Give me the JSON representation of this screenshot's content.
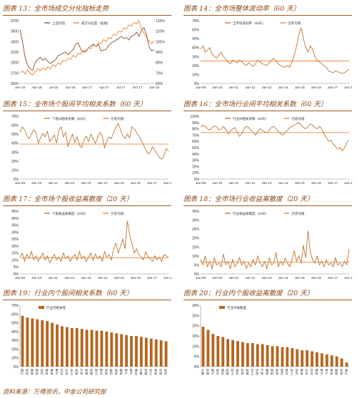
{
  "footer": "资料来源：万得资讯，中金公司研究部",
  "colors": {
    "line": "#b5651d",
    "ref": "#e8761d",
    "dark": "#7a3b10",
    "bar": "#b5651d"
  },
  "charts": [
    {
      "id": "c13",
      "title": "图表 13：全市场成交分化指标走势",
      "chart_data": {
        "type": "line",
        "dual_axis": true,
        "ylim": [
          2500,
          3700
        ],
        "yticks": [
          2500,
          2700,
          2900,
          3100,
          3300,
          3500,
          3700
        ],
        "ylim_right": [
          60,
          120
        ],
        "yticks_right": [
          "60%",
          "70%",
          "80%",
          "90%",
          "100%",
          "110%",
          "120%"
        ],
        "x_ticks": [
          "Jan-16",
          "Apr-16",
          "Jul-16",
          "Oct-16",
          "Jan-17",
          "Apr-17",
          "Jul-17",
          "Oct-17",
          "Jan-18"
        ],
        "series": [
          {
            "name": "上证综指",
            "axis": "left",
            "color": "dark",
            "values": [
              3530,
              3300,
              3000,
              2850,
              2780,
              2750,
              2900,
              2960,
              3000,
              2940,
              2980,
              2920,
              2880,
              2920,
              2950,
              3030,
              3050,
              3080,
              3100,
              3050,
              3100,
              3150,
              3250,
              3280,
              3150,
              3100,
              3120,
              3180,
              3220,
              3250,
              3200,
              3250,
              3120,
              3140,
              3150,
              3230,
              3270,
              3300,
              3330,
              3360,
              3400,
              3360,
              3380,
              3330,
              3410,
              3420,
              3480,
              3400,
              3520,
              3570,
              3420,
              3200,
              3120,
              3150
            ]
          },
          {
            "name": "成交分化度（右轴）",
            "axis": "right",
            "color": "ref",
            "values": [
              70,
              72,
              69,
              73,
              70,
              68,
              71,
              74,
              72,
              75,
              73,
              76,
              74,
              78,
              76,
              80,
              78,
              82,
              81,
              84,
              83,
              87,
              85,
              89,
              88,
              92,
              90,
              94,
              93,
              97,
              95,
              99,
              98,
              102,
              100,
              104,
              103,
              107,
              106,
              110,
              109,
              113,
              112,
              116,
              115,
              118,
              117,
              120,
              112,
              108,
              104,
              100,
              98,
              101
            ]
          }
        ]
      }
    },
    {
      "id": "c14",
      "title": "图表 14：全市场整体波动率（60 天）",
      "chart_data": {
        "type": "line",
        "ylim": [
          0,
          70
        ],
        "yticks": [
          "0%",
          "10%",
          "20%",
          "30%",
          "40%",
          "50%",
          "60%",
          "70%"
        ],
        "x_ticks": [
          "Jan-09",
          "Jan-10",
          "Jan-11",
          "Jan-12",
          "Jan-13",
          "Jan-14",
          "Jan-15",
          "Jan-16",
          "Jan-17",
          "Jan-18"
        ],
        "series": [
          {
            "name": "全市场波动率（60天）",
            "color": "line",
            "values": [
              38,
              42,
              35,
              37,
              40,
              33,
              30,
              28,
              32,
              35,
              30,
              27,
              24,
              22,
              26,
              25,
              23,
              26,
              24,
              22,
              20,
              23,
              21,
              19,
              22,
              26,
              24,
              22,
              21,
              20,
              23,
              26,
              28,
              25,
              22,
              20,
              19,
              18,
              20,
              18,
              24,
              32,
              42,
              55,
              62,
              50,
              40,
              35,
              42,
              38,
              30,
              26,
              24,
              22,
              20,
              18,
              14,
              13,
              12,
              14,
              13,
              12,
              11,
              12,
              14,
              16
            ]
          },
          {
            "name": "历史均值",
            "color": "ref",
            "constant": 25
          }
        ]
      }
    },
    {
      "id": "c15",
      "title": "图表 15：全市场个股间平均相关系数（60 天）",
      "chart_data": {
        "type": "line",
        "ylim": [
          0,
          70
        ],
        "yticks": [
          "0%",
          "10%",
          "20%",
          "30%",
          "40%",
          "50%",
          "60%",
          "70%"
        ],
        "x_ticks": [
          "Jan-09",
          "Jan-10",
          "Jan-11",
          "Jan-12",
          "Jan-13",
          "Jan-14",
          "Jan-15",
          "Jan-16",
          "Jan-17",
          "Jan-18"
        ],
        "series": [
          {
            "name": "个股间相关系数（60天）",
            "color": "line",
            "values": [
              52,
              58,
              55,
              48,
              45,
              50,
              55,
              52,
              40,
              46,
              51,
              47,
              53,
              42,
              45,
              49,
              40,
              55,
              58,
              47,
              52,
              36,
              44,
              50,
              41,
              47,
              38,
              35,
              44,
              48,
              42,
              50,
              45,
              40,
              46,
              52,
              48,
              35,
              42,
              47,
              45,
              52,
              58,
              62,
              55,
              48,
              45,
              50,
              46,
              58,
              56,
              52,
              48,
              44,
              38,
              33,
              28,
              30,
              36,
              32,
              28,
              24,
              22,
              26,
              34,
              31
            ]
          },
          {
            "name": "历史均值",
            "color": "ref",
            "constant": 39
          }
        ]
      }
    },
    {
      "id": "c16",
      "title": "图表 16：全市场行业间平均相关系数（60 天）",
      "chart_data": {
        "type": "line",
        "ylim": [
          0,
          100
        ],
        "yticks": [
          "0%",
          "10%",
          "20%",
          "30%",
          "40%",
          "50%",
          "60%",
          "70%",
          "80%",
          "90%",
          "100%"
        ],
        "x_ticks": [
          "Jan-09",
          "Jan-10",
          "Jan-11",
          "Jan-12",
          "Jan-13",
          "Jan-14",
          "Jan-15",
          "Jan-16",
          "Jan-17",
          "Jan-18"
        ],
        "series": [
          {
            "name": "行业间相关系数（60天）",
            "color": "line",
            "values": [
              83,
              86,
              84,
              80,
              78,
              82,
              85,
              83,
              78,
              80,
              84,
              79,
              72,
              76,
              80,
              82,
              75,
              68,
              72,
              80,
              84,
              82,
              78,
              74,
              70,
              76,
              80,
              78,
              75,
              74,
              78,
              82,
              84,
              80,
              76,
              72,
              70,
              74,
              78,
              82,
              84,
              86,
              88,
              90,
              86,
              82,
              80,
              84,
              88,
              86,
              82,
              80,
              84,
              80,
              72,
              66,
              60,
              62,
              56,
              52,
              48,
              50,
              45,
              50,
              58,
              62
            ]
          },
          {
            "name": "历史均值",
            "color": "ref",
            "constant": 74
          }
        ]
      }
    },
    {
      "id": "c17",
      "title": "图表 17：全市场个股收益离散度（20 天）",
      "chart_data": {
        "type": "line",
        "ylim": [
          0,
          45
        ],
        "yticks": [
          "0%",
          "5%",
          "10%",
          "15%",
          "20%",
          "25%",
          "30%",
          "35%",
          "40%",
          "45%"
        ],
        "x_ticks": [
          "Jan-09",
          "Jan-10",
          "Jan-11",
          "Jan-12",
          "Jan-13",
          "Jan-14",
          "Jan-15",
          "Jan-16",
          "Jan-17",
          "Jan-18"
        ],
        "series": [
          {
            "name": "个股收益离散度（20天）",
            "color": "line",
            "values": [
              12,
              15,
              9,
              14,
              11,
              16,
              10,
              13,
              9,
              12,
              15,
              10,
              13,
              8,
              11,
              14,
              10,
              12,
              9,
              15,
              11,
              13,
              9,
              12,
              14,
              10,
              16,
              11,
              13,
              9,
              12,
              15,
              10,
              14,
              11,
              13,
              9,
              16,
              12,
              14,
              10,
              18,
              22,
              15,
              20,
              25,
              18,
              38,
              28,
              22,
              15,
              18,
              14,
              12,
              10,
              16,
              12,
              11,
              9,
              13,
              10,
              12,
              9,
              14,
              13,
              12
            ]
          },
          {
            "name": "历史均值",
            "color": "ref",
            "constant": 11.5
          }
        ]
      }
    },
    {
      "id": "c18",
      "title": "图表 18：全市场行业收益离散度（20 天）",
      "chart_data": {
        "type": "line",
        "ylim": [
          0,
          35
        ],
        "yticks": [
          "0%",
          "5%",
          "10%",
          "15%",
          "20%",
          "25%",
          "30%",
          "35%"
        ],
        "x_ticks": [
          "Jan-09",
          "Jan-10",
          "Jan-11",
          "Jan-12",
          "Jan-13",
          "Jan-14",
          "Jan-15",
          "Jan-16",
          "Jan-17",
          "Jan-18"
        ],
        "series": [
          {
            "name": "行业收益离散度（20天）",
            "color": "line",
            "values": [
              8,
              5,
              10,
              4,
              7,
              3,
              9,
              5,
              6,
              4,
              11,
              5,
              7,
              3,
              8,
              4,
              6,
              9,
              5,
              7,
              3,
              6,
              4,
              8,
              5,
              10,
              6,
              4,
              7,
              3,
              9,
              5,
              6,
              12,
              4,
              7,
              5,
              9,
              6,
              4,
              8,
              13,
              7,
              10,
              6,
              16,
              9,
              24,
              12,
              8,
              6,
              10,
              5,
              7,
              4,
              8,
              5,
              6,
              4,
              9,
              5,
              6,
              4,
              7,
              5,
              14
            ]
          },
          {
            "name": "历史均值",
            "color": "ref",
            "constant": 6.5
          }
        ]
      }
    },
    {
      "id": "c19",
      "title": "图表 19：行业内个股间相关系数（60 天）",
      "chart_data": {
        "type": "bar",
        "ylim": [
          0,
          70
        ],
        "yticks": [
          "0%",
          "10%",
          "20%",
          "30%",
          "40%",
          "50%",
          "60%",
          "70%"
        ],
        "series": [
          {
            "name": "行业内相关性",
            "color": "bar"
          }
        ],
        "categories": [
          "银行",
          "非银",
          "钢铁",
          "煤炭",
          "有色",
          "建材",
          "建筑",
          "电力",
          "交运",
          "石化",
          "化工",
          "机械",
          "汽车",
          "家电",
          "纺服",
          "轻工",
          "食饮",
          "农林",
          "医药",
          "商贸",
          "餐旅",
          "地产",
          "电子",
          "通信",
          "计算",
          "传媒",
          "军工",
          "电新",
          "环保",
          "综合"
        ],
        "values": [
          58,
          56,
          55,
          54,
          53,
          52,
          50,
          48,
          46,
          45,
          44,
          44,
          43,
          42,
          42,
          41,
          41,
          40,
          39,
          38,
          37,
          36,
          35,
          35,
          34,
          33,
          32,
          31,
          30,
          29
        ]
      }
    },
    {
      "id": "c20",
      "title": "图表 20：行业内个股收益离散度（20 天）",
      "chart_data": {
        "type": "bar",
        "ylim": [
          0,
          30
        ],
        "yticks": [
          "0%",
          "5%",
          "10%",
          "15%",
          "20%",
          "25%",
          "30%"
        ],
        "series": [
          {
            "name": "行业内离散度",
            "color": "bar"
          }
        ],
        "categories": [
          "计算",
          "传媒",
          "电子",
          "综合",
          "通信",
          "纺服",
          "轻工",
          "医药",
          "农林",
          "机械",
          "军工",
          "环保",
          "汽车",
          "餐旅",
          "电新",
          "家电",
          "商贸",
          "食饮",
          "化工",
          "有色",
          "建筑",
          "石化",
          "交运",
          "建材",
          "电力",
          "地产",
          "煤炭",
          "钢铁",
          "非银",
          "银行"
        ],
        "values": [
          19.5,
          18,
          16,
          15,
          14.5,
          13.5,
          13,
          12.5,
          12,
          11.5,
          11.5,
          11,
          11,
          10.5,
          10,
          10,
          9.5,
          9.5,
          9,
          8.5,
          8,
          8,
          7.5,
          7,
          6.5,
          6,
          5.5,
          5,
          4,
          2
        ]
      }
    }
  ]
}
